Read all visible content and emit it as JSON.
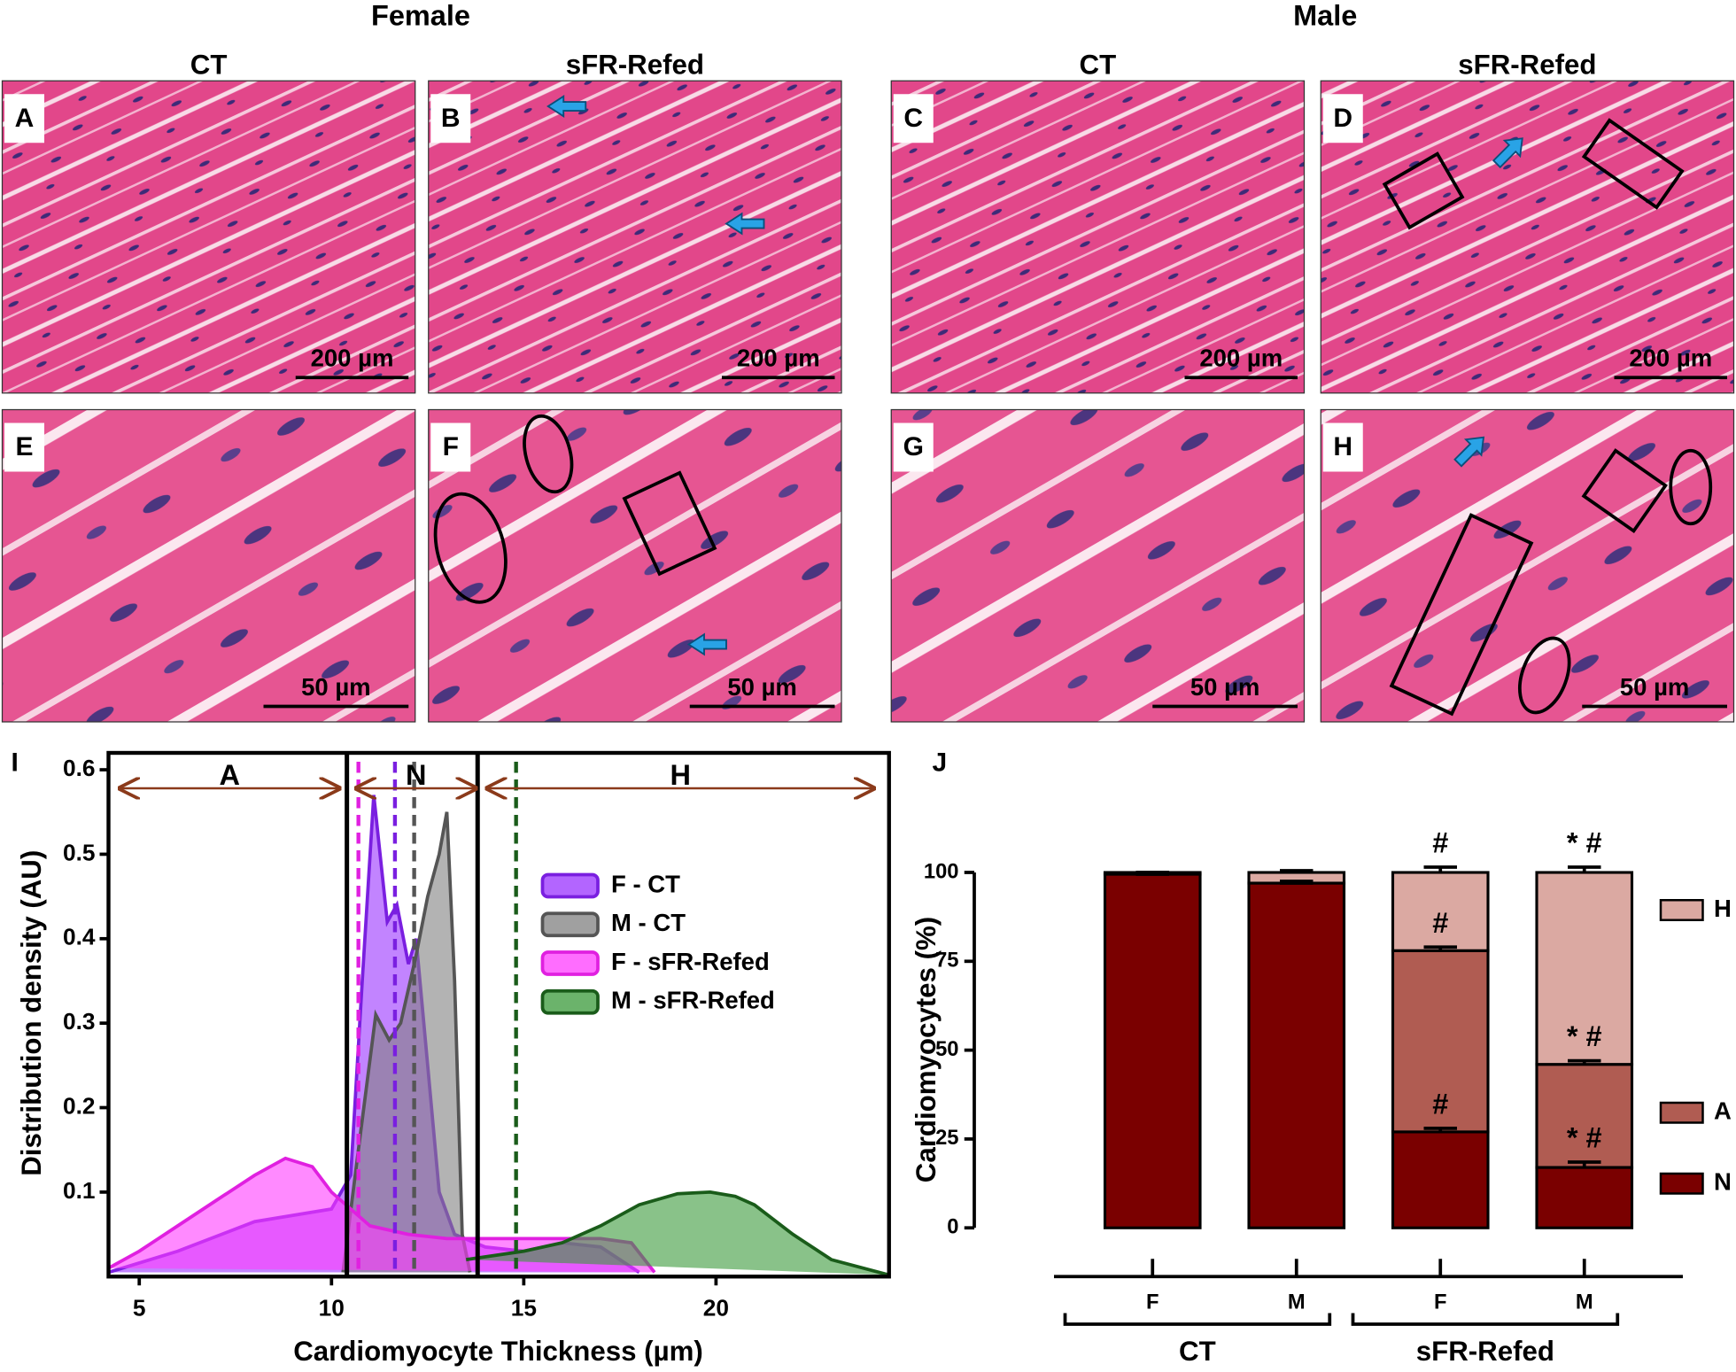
{
  "figure": {
    "headers": {
      "female": "Female",
      "male": "Male"
    },
    "columns": [
      "CT",
      "sFR-Refed",
      "CT",
      "sFR-Refed"
    ],
    "panels": [
      {
        "letter": "A",
        "scale": "200 µm"
      },
      {
        "letter": "B",
        "scale": "200 µm"
      },
      {
        "letter": "C",
        "scale": "200 µm"
      },
      {
        "letter": "D",
        "scale": "200 µm"
      },
      {
        "letter": "E",
        "scale": "50 µm"
      },
      {
        "letter": "F",
        "scale": "50 µm"
      },
      {
        "letter": "G",
        "scale": "50 µm"
      },
      {
        "letter": "H",
        "scale": "50 µm"
      }
    ]
  },
  "chart_data": [
    {
      "type": "area",
      "panel": "I",
      "xlabel": "Cardiomyocyte Thickness (µm)",
      "ylabel": "Distribution density (AU)",
      "xlim": [
        4.2,
        24.5
      ],
      "ylim": [
        0,
        0.62
      ],
      "xticks": [
        5,
        10,
        15,
        20
      ],
      "yticks": [
        0.1,
        0.2,
        0.3,
        0.4,
        0.5,
        0.6
      ],
      "legend": "center",
      "thresholds": [
        10.4,
        13.8
      ],
      "regions": [
        {
          "label": "A",
          "from": 4.5,
          "to": 10.2
        },
        {
          "label": "N",
          "from": 10.65,
          "to": 13.75
        },
        {
          "label": "H",
          "from": 14.05,
          "to": 24.1
        }
      ],
      "series": [
        {
          "name": "F - CT",
          "color": "#9932ff",
          "line": "#7a1fe0",
          "mean": 11.65,
          "x": [
            4.2,
            6,
            8,
            10,
            10.5,
            10.8,
            11.1,
            11.45,
            11.7,
            12.0,
            12.2,
            12.5,
            12.8,
            13.2,
            14,
            15,
            16,
            17,
            18
          ],
          "values": [
            0.005,
            0.03,
            0.065,
            0.08,
            0.12,
            0.35,
            0.57,
            0.42,
            0.44,
            0.37,
            0.4,
            0.25,
            0.1,
            0.05,
            0.035,
            0.03,
            0.04,
            0.035,
            0.005
          ]
        },
        {
          "name": "M - CT",
          "color": "#808080",
          "line": "#555555",
          "mean": 12.15,
          "x": [
            10.3,
            10.7,
            11.15,
            11.5,
            11.8,
            12.2,
            12.5,
            12.8,
            13.0,
            13.2,
            13.4,
            13.6
          ],
          "values": [
            0.005,
            0.15,
            0.31,
            0.28,
            0.3,
            0.38,
            0.45,
            0.5,
            0.55,
            0.35,
            0.05,
            0.005
          ]
        },
        {
          "name": "F - sFR-Refed",
          "color": "#ff3cff",
          "line": "#e020e0",
          "mean": 10.7,
          "x": [
            4.2,
            5,
            6,
            7,
            8,
            8.8,
            9.5,
            10,
            10.5,
            11,
            12,
            13,
            14,
            15,
            16,
            17,
            17.8,
            18.4
          ],
          "values": [
            0.01,
            0.03,
            0.06,
            0.09,
            0.12,
            0.14,
            0.13,
            0.1,
            0.08,
            0.06,
            0.05,
            0.045,
            0.045,
            0.045,
            0.045,
            0.045,
            0.04,
            0.005
          ]
        },
        {
          "name": "M - sFR-Refed",
          "color": "#3a9a3a",
          "line": "#1a5c1a",
          "mean": 14.8,
          "x": [
            13.5,
            15,
            16,
            17,
            18,
            19,
            19.85,
            20.5,
            21,
            22,
            23,
            24.5
          ],
          "values": [
            0.02,
            0.03,
            0.04,
            0.06,
            0.085,
            0.098,
            0.1,
            0.095,
            0.085,
            0.05,
            0.02,
            0.002
          ]
        }
      ]
    },
    {
      "type": "stacked_bar",
      "panel": "J",
      "ylabel": "Cardiomyocytes (%)",
      "categories": [
        "F",
        "M",
        "F",
        "M"
      ],
      "groups": [
        "CT",
        "sFR-Refed"
      ],
      "ylim": [
        0,
        100
      ],
      "yticks": [
        0,
        25,
        50,
        75,
        100
      ],
      "legend": "right",
      "series": [
        {
          "name": "N",
          "color": "#7a0000",
          "values": [
            99.5,
            97,
            27,
            17
          ],
          "errors": [
            0.5,
            0.5,
            1,
            1.5
          ],
          "annotations": [
            null,
            null,
            "#",
            "* #"
          ]
        },
        {
          "name": "A",
          "color": "#b05c52",
          "values": [
            0,
            0,
            51,
            29
          ],
          "errors": [
            0,
            0,
            1,
            1
          ],
          "annotations": [
            null,
            null,
            "#",
            "* #"
          ]
        },
        {
          "name": "H",
          "color": "#dba9a2",
          "values": [
            0.5,
            3,
            22,
            54
          ],
          "errors": [
            0,
            0.5,
            1.5,
            1.5
          ],
          "annotations": [
            null,
            null,
            "#",
            "* #"
          ]
        }
      ]
    }
  ]
}
